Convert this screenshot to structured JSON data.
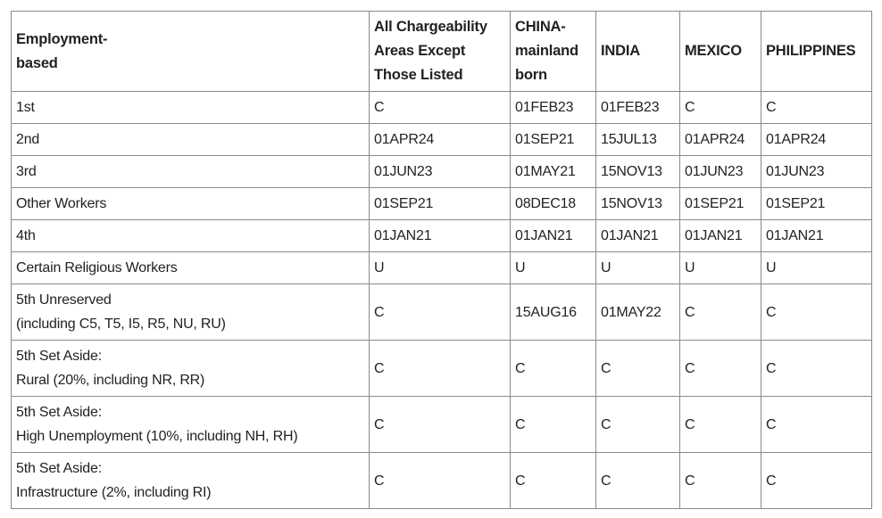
{
  "table": {
    "headers": [
      "Employment-\nbased",
      "All Chargeability Areas Except Those Listed",
      "CHINA-mainland born",
      "INDIA",
      "MEXICO",
      "PHILIPPINES"
    ],
    "rows": [
      {
        "category": "1st",
        "values": [
          "C",
          "01FEB23",
          "01FEB23",
          "C",
          "C"
        ]
      },
      {
        "category": "2nd",
        "values": [
          "01APR24",
          "01SEP21",
          "15JUL13",
          "01APR24",
          "01APR24"
        ]
      },
      {
        "category": "3rd",
        "values": [
          "01JUN23",
          "01MAY21",
          "15NOV13",
          "01JUN23",
          "01JUN23"
        ]
      },
      {
        "category": "Other Workers",
        "values": [
          "01SEP21",
          "08DEC18",
          "15NOV13",
          "01SEP21",
          "01SEP21"
        ]
      },
      {
        "category": "4th",
        "values": [
          "01JAN21",
          "01JAN21",
          "01JAN21",
          "01JAN21",
          "01JAN21"
        ]
      },
      {
        "category": "Certain Religious Workers",
        "values": [
          "U",
          "U",
          "U",
          "U",
          "U"
        ]
      },
      {
        "category": "5th Unreserved",
        "subcategory": "(including C5, T5, I5, R5, NU, RU)",
        "values": [
          "C",
          "15AUG16",
          "01MAY22",
          "C",
          "C"
        ]
      },
      {
        "category": "5th Set Aside:",
        "subcategory": "Rural (20%, including NR, RR)",
        "values": [
          "C",
          "C",
          "C",
          "C",
          "C"
        ]
      },
      {
        "category": "5th Set Aside:",
        "subcategory": "High Unemployment (10%, including NH, RH)",
        "values": [
          "C",
          "C",
          "C",
          "C",
          "C"
        ]
      },
      {
        "category": "5th Set Aside:",
        "subcategory": "Infrastructure (2%, including RI)",
        "values": [
          "C",
          "C",
          "C",
          "C",
          "C"
        ]
      }
    ]
  }
}
